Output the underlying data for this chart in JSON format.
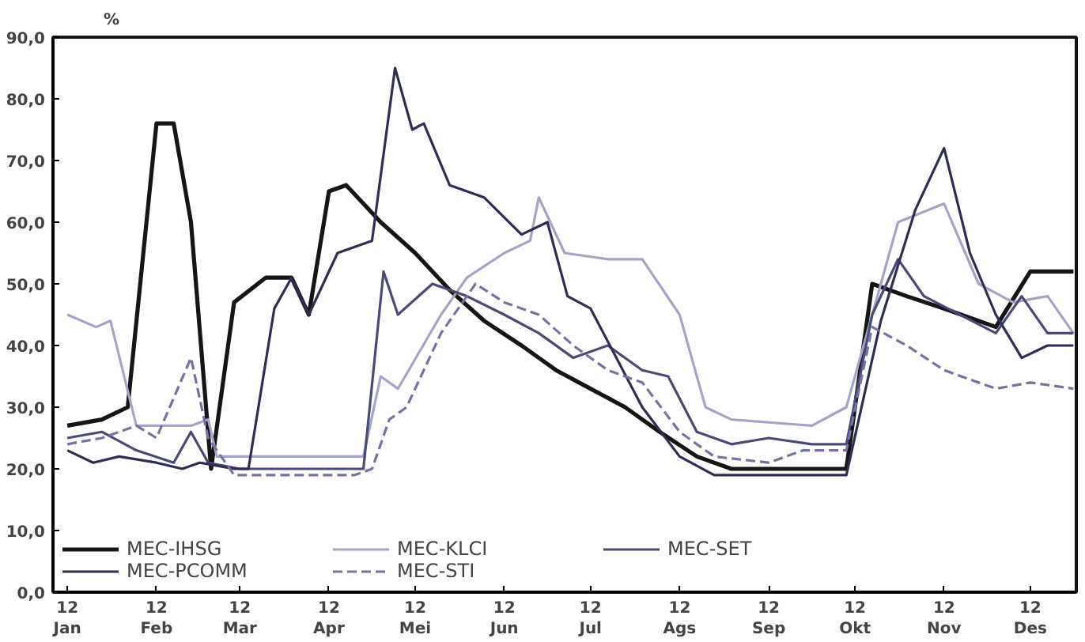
{
  "chart_data": {
    "type": "line",
    "ylabel": "%",
    "xlim": [
      "2011-12-27",
      "2012-12-17"
    ],
    "ylim": [
      0,
      90
    ],
    "xticks": [
      {
        "value": "2012-01-01",
        "label": "12\nJan"
      },
      {
        "value": "2012-02-01",
        "label": "12\nFeb"
      },
      {
        "value": "2012-03-01",
        "label": "12\nMar"
      },
      {
        "value": "2012-04-01",
        "label": "12\nApr"
      },
      {
        "value": "2012-05-01",
        "label": "12\nMei"
      },
      {
        "value": "2012-06-01",
        "label": "12\nJun"
      },
      {
        "value": "2012-07-01",
        "label": "12\nJul"
      },
      {
        "value": "2012-08-01",
        "label": "12\nAgs"
      },
      {
        "value": "2012-09-01",
        "label": "12\nSep"
      },
      {
        "value": "2012-10-01",
        "label": "12\nOkt"
      },
      {
        "value": "2012-11-01",
        "label": "12\nNov"
      },
      {
        "value": "2012-12-01",
        "label": "12\nDes"
      }
    ],
    "yticks": [
      {
        "value": 0,
        "label": "0,0"
      },
      {
        "value": 10,
        "label": "10,0"
      },
      {
        "value": 20,
        "label": "20,0"
      },
      {
        "value": 30,
        "label": "30,0"
      },
      {
        "value": 40,
        "label": "40,0"
      },
      {
        "value": 50,
        "label": "50,0"
      },
      {
        "value": 60,
        "label": "60,0"
      },
      {
        "value": 70,
        "label": "70,0"
      },
      {
        "value": 80,
        "label": "80,0"
      },
      {
        "value": 90,
        "label": "90,0"
      }
    ],
    "grid": false,
    "legend": "bottom left",
    "marker": "none",
    "series": [
      {
        "name": "MEC-IHSG",
        "color": "#151515",
        "line_style": "solid",
        "x": [
          "2012-01-01",
          "2012-01-13",
          "2012-01-22",
          "2012-02-01",
          "2012-02-07",
          "2012-02-13",
          "2012-02-20",
          "2012-02-28",
          "2012-03-10",
          "2012-03-19",
          "2012-03-25",
          "2012-04-01",
          "2012-04-07",
          "2012-04-19",
          "2012-05-01",
          "2012-05-13",
          "2012-05-25",
          "2012-06-07",
          "2012-06-19",
          "2012-07-01",
          "2012-07-13",
          "2012-07-25",
          "2012-08-07",
          "2012-08-19",
          "2012-09-16",
          "2012-09-28",
          "2012-10-07",
          "2012-10-19",
          "2012-11-01",
          "2012-11-19",
          "2012-12-01",
          "2012-12-16"
        ],
        "values": [
          27,
          28,
          30,
          76,
          76,
          60,
          20,
          47,
          51,
          51,
          45,
          65,
          66,
          60,
          55,
          49,
          44,
          40,
          36,
          33,
          30,
          26,
          22,
          20,
          20,
          20,
          50,
          48,
          46,
          43,
          52,
          52
        ]
      },
      {
        "name": "MEC-KLCI",
        "color": "#a4a4c8",
        "line_style": "solid",
        "x": [
          "2012-01-01",
          "2012-01-11",
          "2012-01-16",
          "2012-01-25",
          "2012-02-13",
          "2012-02-19",
          "2012-02-22",
          "2012-04-07",
          "2012-04-13",
          "2012-04-19",
          "2012-04-25",
          "2012-05-10",
          "2012-05-19",
          "2012-06-01",
          "2012-06-10",
          "2012-06-13",
          "2012-06-22",
          "2012-07-07",
          "2012-07-19",
          "2012-08-01",
          "2012-08-10",
          "2012-08-19",
          "2012-09-16",
          "2012-09-28",
          "2012-10-07",
          "2012-10-16",
          "2012-11-01",
          "2012-11-13",
          "2012-11-25",
          "2012-12-07",
          "2012-12-16"
        ],
        "values": [
          45,
          43,
          44,
          27,
          27,
          28,
          22,
          22,
          22,
          35,
          33,
          45,
          51,
          55,
          57,
          64,
          55,
          54,
          54,
          45,
          30,
          28,
          27,
          30,
          45,
          60,
          63,
          50,
          47,
          48,
          42
        ]
      },
      {
        "name": "MEC-SET",
        "color": "#4a4a78",
        "line_style": "solid",
        "x": [
          "2012-01-01",
          "2012-01-13",
          "2012-01-25",
          "2012-02-07",
          "2012-02-13",
          "2012-02-19",
          "2012-03-01",
          "2012-04-13",
          "2012-04-20",
          "2012-04-25",
          "2012-05-07",
          "2012-05-19",
          "2012-06-01",
          "2012-06-13",
          "2012-06-25",
          "2012-07-07",
          "2012-07-19",
          "2012-07-28",
          "2012-08-07",
          "2012-08-19",
          "2012-09-01",
          "2012-09-16",
          "2012-09-28",
          "2012-10-07",
          "2012-10-16",
          "2012-10-25",
          "2012-11-19",
          "2012-11-28",
          "2012-12-07",
          "2012-12-16"
        ],
        "values": [
          25,
          26,
          23,
          21,
          26,
          21,
          20,
          20,
          52,
          45,
          50,
          48,
          45,
          42,
          38,
          40,
          36,
          35,
          26,
          24,
          25,
          24,
          24,
          45,
          54,
          48,
          42,
          48,
          42,
          42
        ]
      },
      {
        "name": "MEC-PCOMM",
        "color": "#2e2e55",
        "line_style": "solid",
        "x": [
          "2012-01-01",
          "2012-01-10",
          "2012-01-19",
          "2012-02-01",
          "2012-02-10",
          "2012-02-16",
          "2012-02-28",
          "2012-03-04",
          "2012-03-13",
          "2012-03-19",
          "2012-03-25",
          "2012-04-04",
          "2012-04-16",
          "2012-04-24",
          "2012-04-30",
          "2012-05-04",
          "2012-05-13",
          "2012-05-25",
          "2012-06-07",
          "2012-06-16",
          "2012-06-23",
          "2012-07-01",
          "2012-07-19",
          "2012-08-01",
          "2012-08-13",
          "2012-09-01",
          "2012-09-28",
          "2012-10-10",
          "2012-10-22",
          "2012-11-01",
          "2012-11-10",
          "2012-11-19",
          "2012-11-28",
          "2012-12-07",
          "2012-12-16"
        ],
        "values": [
          23,
          21,
          22,
          21,
          20,
          21,
          20,
          20,
          46,
          51,
          45,
          55,
          57,
          85,
          75,
          76,
          66,
          64,
          58,
          60,
          48,
          46,
          30,
          22,
          19,
          19,
          19,
          44,
          62,
          72,
          55,
          45,
          38,
          40,
          40
        ]
      },
      {
        "name": "MEC-STI",
        "color": "#7474a4",
        "line_style": "dashed",
        "x": [
          "2012-01-01",
          "2012-01-13",
          "2012-01-25",
          "2012-02-01",
          "2012-02-13",
          "2012-02-19",
          "2012-02-28",
          "2012-04-10",
          "2012-04-16",
          "2012-04-22",
          "2012-04-28",
          "2012-05-10",
          "2012-05-22",
          "2012-06-01",
          "2012-06-13",
          "2012-06-25",
          "2012-07-07",
          "2012-07-19",
          "2012-08-01",
          "2012-08-13",
          "2012-09-01",
          "2012-09-13",
          "2012-09-28",
          "2012-10-07",
          "2012-10-19",
          "2012-11-01",
          "2012-11-19",
          "2012-12-01",
          "2012-12-16"
        ],
        "values": [
          24,
          25,
          27,
          25,
          38,
          25,
          19,
          19,
          20,
          28,
          30,
          42,
          50,
          47,
          45,
          40,
          36,
          34,
          26,
          22,
          21,
          23,
          23,
          43,
          40,
          36,
          33,
          34,
          33
        ]
      }
    ]
  }
}
